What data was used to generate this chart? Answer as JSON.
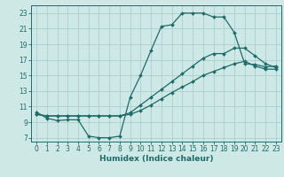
{
  "xlabel": "Humidex (Indice chaleur)",
  "xlim": [
    -0.5,
    23.5
  ],
  "ylim": [
    6.5,
    24
  ],
  "xticks": [
    0,
    1,
    2,
    3,
    4,
    5,
    6,
    7,
    8,
    9,
    10,
    11,
    12,
    13,
    14,
    15,
    16,
    17,
    18,
    19,
    20,
    21,
    22,
    23
  ],
  "yticks": [
    7,
    9,
    11,
    13,
    15,
    17,
    19,
    21,
    23
  ],
  "bg_color": "#cde8e5",
  "line_color": "#1e6b6b",
  "grid_color": "#aacfcc",
  "curve1_x": [
    0,
    1,
    2,
    3,
    4,
    5,
    6,
    7,
    8,
    9,
    10,
    11,
    12,
    13,
    14,
    15,
    16,
    17,
    18,
    19,
    20,
    21,
    22,
    23
  ],
  "curve1_y": [
    10.3,
    9.5,
    9.2,
    9.3,
    9.3,
    7.2,
    7.0,
    7.0,
    7.2,
    12.2,
    15.0,
    18.2,
    21.3,
    21.5,
    23.0,
    23.0,
    23.0,
    22.5,
    22.5,
    20.5,
    16.5,
    16.4,
    16.1,
    16.2
  ],
  "curve2_x": [
    0,
    1,
    2,
    3,
    4,
    5,
    6,
    7,
    8,
    9,
    10,
    11,
    12,
    13,
    14,
    15,
    16,
    17,
    18,
    19,
    20,
    21,
    22,
    23
  ],
  "curve2_y": [
    10.0,
    9.8,
    9.8,
    9.8,
    9.8,
    9.8,
    9.8,
    9.8,
    9.8,
    10.2,
    11.2,
    12.2,
    13.2,
    14.2,
    15.2,
    16.2,
    17.2,
    17.8,
    17.8,
    18.5,
    18.5,
    17.5,
    16.5,
    16.0
  ],
  "curve3_x": [
    0,
    1,
    2,
    3,
    4,
    5,
    6,
    7,
    8,
    9,
    10,
    11,
    12,
    13,
    14,
    15,
    16,
    17,
    18,
    19,
    20,
    21,
    22,
    23
  ],
  "curve3_y": [
    10.0,
    9.8,
    9.8,
    9.8,
    9.8,
    9.8,
    9.8,
    9.8,
    9.8,
    10.0,
    10.5,
    11.2,
    12.0,
    12.8,
    13.5,
    14.2,
    15.0,
    15.5,
    16.0,
    16.5,
    16.8,
    16.2,
    15.8,
    15.8
  ]
}
